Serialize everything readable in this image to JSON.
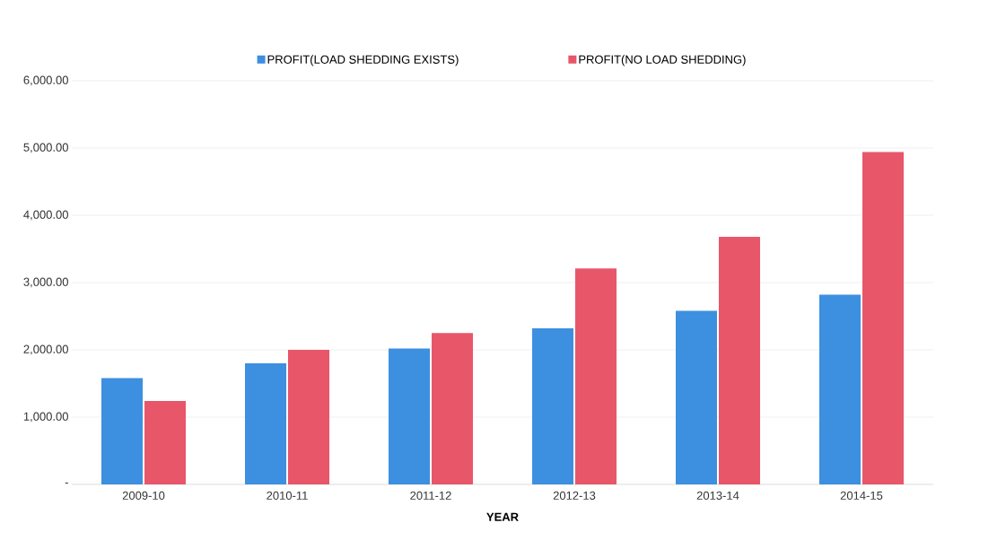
{
  "chart_data": {
    "type": "bar",
    "xlabel": "YEAR",
    "categories": [
      "2009-10",
      "2010-11",
      "2011-12",
      "2012-13",
      "2013-14",
      "2014-15"
    ],
    "series": [
      {
        "name": "PROFIT(LOAD SHEDDING EXISTS)",
        "color": "#3d8fe0",
        "values": [
          1580,
          1800,
          2020,
          2320,
          2580,
          2820
        ]
      },
      {
        "name": "PROFIT(NO LOAD SHEDDING)",
        "color": "#e8566a",
        "values": [
          1240,
          2000,
          2250,
          3210,
          3680,
          4940
        ]
      }
    ],
    "ylim": [
      0,
      6000
    ],
    "yticks": [
      {
        "value": 0,
        "label": "-"
      },
      {
        "value": 1000,
        "label": "1,000.00"
      },
      {
        "value": 2000,
        "label": "2,000.00"
      },
      {
        "value": 3000,
        "label": "3,000.00"
      },
      {
        "value": 4000,
        "label": "4,000.00"
      },
      {
        "value": 5000,
        "label": "5,000.00"
      },
      {
        "value": 6000,
        "label": "6,000.00"
      }
    ],
    "grid": "y",
    "legend": "top"
  }
}
